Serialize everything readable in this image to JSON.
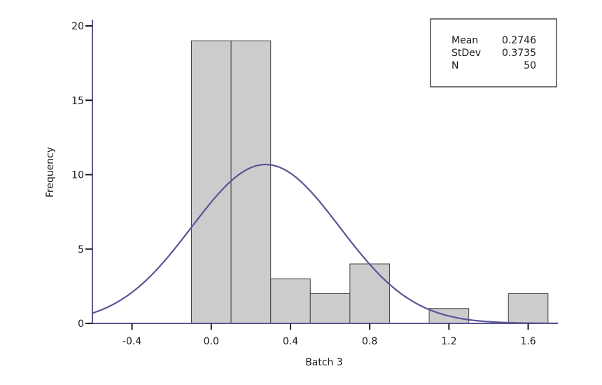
{
  "chart_data": {
    "type": "bar",
    "subtype": "histogram",
    "xlabel": "Batch 3",
    "ylabel": "Frequency",
    "xlim": [
      -0.6,
      1.75
    ],
    "ylim": [
      0,
      20
    ],
    "x_ticks": [
      "-0.4",
      "0.0",
      "0.4",
      "0.8",
      "1.2",
      "1.6"
    ],
    "y_ticks": [
      "0",
      "5",
      "10",
      "15",
      "20"
    ],
    "bin_width": 0.2,
    "bins": [
      {
        "center": 0.0,
        "value": 19
      },
      {
        "center": 0.2,
        "value": 19
      },
      {
        "center": 0.4,
        "value": 3
      },
      {
        "center": 0.6,
        "value": 2
      },
      {
        "center": 0.8,
        "value": 4
      },
      {
        "center": 1.0,
        "value": 0
      },
      {
        "center": 1.2,
        "value": 1
      },
      {
        "center": 1.4,
        "value": 0
      },
      {
        "center": 1.6,
        "value": 2
      }
    ],
    "fit_curve": {
      "type": "normal",
      "mean": 0.2746,
      "stdev": 0.3735,
      "n": 50
    },
    "stats_box": {
      "position": "top-right",
      "rows": [
        {
          "label": "Mean",
          "value": "0.2746"
        },
        {
          "label": "StDev",
          "value": "0.3735"
        },
        {
          "label": "N",
          "value": "50"
        }
      ]
    },
    "colors": {
      "bar_fill": "#cccccc",
      "bar_stroke": "#444444",
      "curve": "#5a5696",
      "axis": "#5a5696",
      "text": "#1a1a1a"
    },
    "grid": false
  }
}
